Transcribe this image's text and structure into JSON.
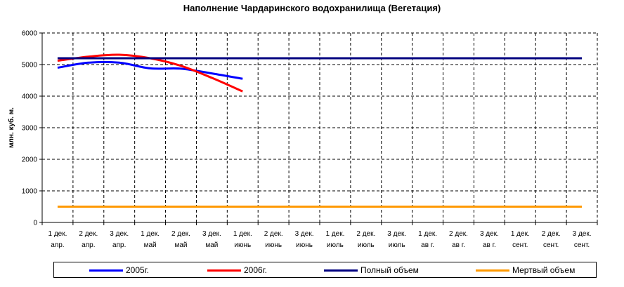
{
  "chart_data": {
    "type": "line",
    "title": "Наполнение Чардаринского водохранилища (Вегетация)",
    "ylabel": "млн. куб. м.",
    "ylim": [
      0,
      6000
    ],
    "yticks": [
      0,
      1000,
      2000,
      3000,
      4000,
      5000,
      6000
    ],
    "grid": true,
    "legend_position": "bottom",
    "categories": [
      [
        "1 дек.",
        "апр."
      ],
      [
        "2 дек.",
        "апр."
      ],
      [
        "3 дек.",
        "апр."
      ],
      [
        "1 дек.",
        "май"
      ],
      [
        "2 дек.",
        "май"
      ],
      [
        "3 дек.",
        "май"
      ],
      [
        "1 дек.",
        "июнь"
      ],
      [
        "2 дек.",
        "июнь"
      ],
      [
        "3 дек.",
        "июнь"
      ],
      [
        "1 дек.",
        "июль"
      ],
      [
        "2 дек.",
        "июль"
      ],
      [
        "3 дек.",
        "июль"
      ],
      [
        "1 дек.",
        "ав г."
      ],
      [
        "2 дек.",
        "ав г."
      ],
      [
        "3 дек.",
        "ав г."
      ],
      [
        "1 дек.",
        "сент."
      ],
      [
        "2 дек.",
        "сент."
      ],
      [
        "3 дек.",
        "сент."
      ]
    ],
    "series": [
      {
        "name": "2005г.",
        "color": "#0000ff",
        "values": [
          4900,
          5060,
          5060,
          4880,
          4870,
          4720,
          4550,
          null,
          null,
          null,
          null,
          null,
          null,
          null,
          null,
          null,
          null,
          null
        ]
      },
      {
        "name": "2006г.",
        "color": "#ff0000",
        "values": [
          5120,
          5250,
          5310,
          5200,
          4960,
          4580,
          4150,
          null,
          null,
          null,
          null,
          null,
          null,
          null,
          null,
          null,
          null,
          null
        ]
      },
      {
        "name": "Полный объем",
        "color": "#000080",
        "values": [
          5200,
          5200,
          5200,
          5200,
          5200,
          5200,
          5200,
          5200,
          5200,
          5200,
          5200,
          5200,
          5200,
          5200,
          5200,
          5200,
          5200,
          5200
        ]
      },
      {
        "name": "Мертвый объем",
        "color": "#ff9900",
        "values": [
          500,
          500,
          500,
          500,
          500,
          500,
          500,
          500,
          500,
          500,
          500,
          500,
          500,
          500,
          500,
          500,
          500,
          500
        ]
      }
    ]
  }
}
